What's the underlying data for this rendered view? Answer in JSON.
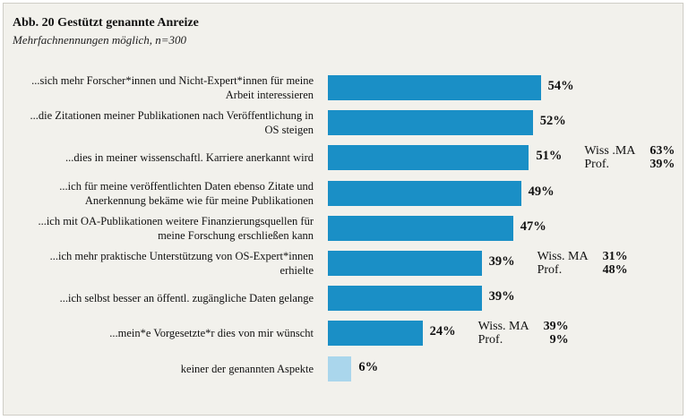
{
  "chart_data": {
    "type": "bar",
    "orientation": "horizontal",
    "title": "Abb. 20 Gestützt genannte Anreize",
    "subtitle": "Mehrfachnennungen möglich, n=300",
    "xlim": [
      0,
      100
    ],
    "unit": "%",
    "colors": {
      "bar": "#1a8fc6",
      "bar_light": "#aad6ec",
      "background": "#f2f1ec"
    },
    "bars": [
      {
        "label": "...sich mehr Forscher*innen und Nicht-Expert*innen für meine Arbeit interessieren",
        "value": 54,
        "value_label": "54%"
      },
      {
        "label": "...die Zitationen meiner Publikationen nach Veröffentlichung in OS steigen",
        "value": 52,
        "value_label": "52%"
      },
      {
        "label": "...dies in meiner wissenschaftl. Karriere anerkannt wird",
        "value": 51,
        "value_label": "51%",
        "breakdown": [
          {
            "group": "Wiss .MA",
            "value_label": "63%"
          },
          {
            "group": "Prof.",
            "value_label": "39%"
          }
        ]
      },
      {
        "label": "...ich für meine veröffentlichten Daten ebenso Zitate und Anerkennung bekäme wie für meine Publikationen",
        "value": 49,
        "value_label": "49%"
      },
      {
        "label": "...ich mit OA-Publikationen weitere Finanzierungsquellen für meine Forschung erschließen kann",
        "value": 47,
        "value_label": "47%"
      },
      {
        "label": "...ich mehr praktische Unterstützung von OS-Expert*innen erhielte",
        "value": 39,
        "value_label": "39%",
        "breakdown": [
          {
            "group": "Wiss. MA",
            "value_label": "31%"
          },
          {
            "group": "Prof.",
            "value_label": "48%"
          }
        ]
      },
      {
        "label": "...ich selbst besser an öffentl. zugängliche Daten gelange",
        "value": 39,
        "value_label": "39%"
      },
      {
        "label": "...mein*e Vorgesetzte*r dies von mir wünscht",
        "value": 24,
        "value_label": "24%",
        "breakdown": [
          {
            "group": "Wiss. MA",
            "value_label": "39%"
          },
          {
            "group": "Prof.",
            "value_label": "9%"
          }
        ]
      },
      {
        "label": "keiner der genannten Aspekte",
        "value": 6,
        "value_label": "6%",
        "highlight": "light"
      }
    ]
  }
}
